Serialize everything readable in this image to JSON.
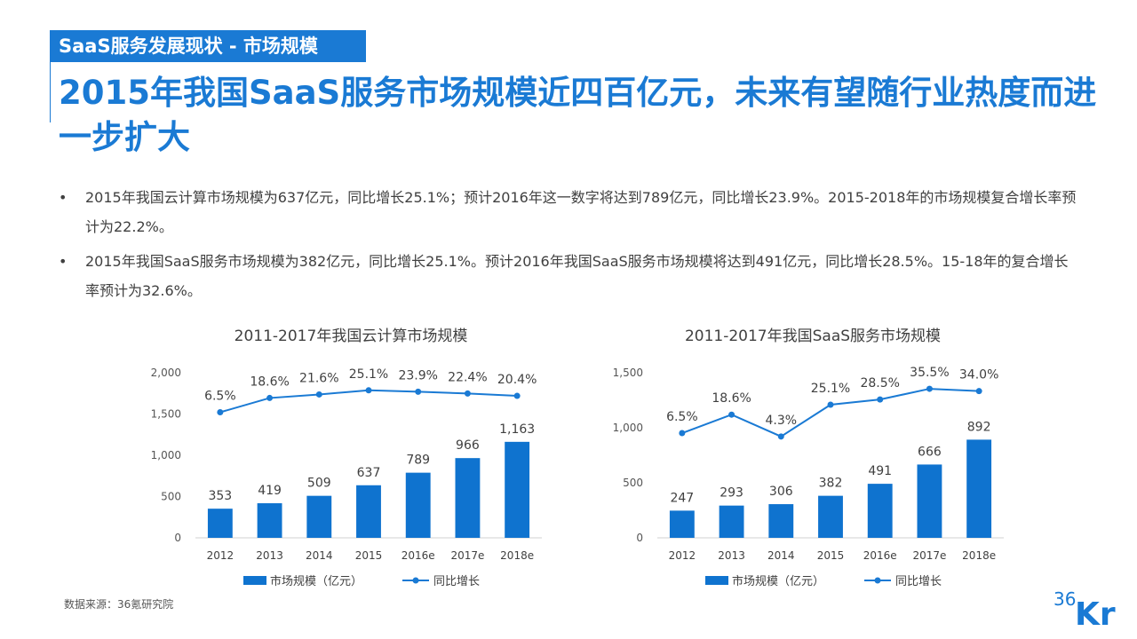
{
  "section_tag": "SaaS服务发展现状 - 市场规模",
  "headline": "2015年我国SaaS服务市场规模近四百亿元，未来有望随行业热度而进一步扩大",
  "bullets": [
    "2015年我国云计算市场规模为637亿元，同比增长25.1%；预计2016年这一数字将达到789亿元，同比增长23.9%。2015-2018年的市场规模复合增长率预计为22.2%。",
    "2015年我国SaaS服务市场规模为382亿元，同比增长25.1%。预计2016年我国SaaS服务市场规模将达到491亿元，同比增长28.5%。15-18年的复合增长率预计为32.6%。"
  ],
  "bullet_symbol": "•",
  "source": "数据来源：36氪研究院",
  "logo": {
    "number": "36",
    "letters": "Kr"
  },
  "colors": {
    "accent": "#1a7ad4",
    "bar": "#0f73cf",
    "line": "#1a7ad4",
    "text": "#404040"
  },
  "chart_data": [
    {
      "type": "bar+line",
      "title": "2011-2017年我国云计算市场规模",
      "categories": [
        "2012",
        "2013",
        "2014",
        "2015",
        "2016e",
        "2017e",
        "2018e"
      ],
      "series": [
        {
          "name": "市场规模（亿元）",
          "type": "bar",
          "values": [
            353,
            419,
            509,
            637,
            789,
            966,
            1163
          ],
          "labels": [
            "353",
            "419",
            "509",
            "637",
            "789",
            "966",
            "1,163"
          ]
        },
        {
          "name": "同比增长",
          "type": "line",
          "values": [
            6.5,
            18.6,
            21.6,
            25.1,
            23.9,
            22.4,
            20.4
          ],
          "labels": [
            "6.5%",
            "18.6%",
            "21.6%",
            "25.1%",
            "23.9%",
            "22.4%",
            "20.4%"
          ]
        }
      ],
      "yaxis": {
        "min": 0,
        "max": 2000,
        "ticks": [
          "0",
          "500",
          "1,000",
          "1,500",
          "2,000"
        ]
      },
      "line_axis_range": [
        -100,
        40
      ],
      "legend": "bottom"
    },
    {
      "type": "bar+line",
      "title": "2011-2017年我国SaaS服务市场规模",
      "categories": [
        "2012",
        "2013",
        "2014",
        "2015",
        "2016e",
        "2017e",
        "2018e"
      ],
      "series": [
        {
          "name": "市场规模（亿元）",
          "type": "bar",
          "values": [
            247,
            293,
            306,
            382,
            491,
            666,
            892
          ],
          "labels": [
            "247",
            "293",
            "306",
            "382",
            "491",
            "666",
            "892"
          ]
        },
        {
          "name": "同比增长",
          "type": "line",
          "values": [
            6.5,
            18.6,
            4.3,
            25.1,
            28.5,
            35.5,
            34.0
          ],
          "labels": [
            "6.5%",
            "18.6%",
            "4.3%",
            "25.1%",
            "28.5%",
            "35.5%",
            "34.0%"
          ]
        }
      ],
      "yaxis": {
        "min": 0,
        "max": 1500,
        "ticks": [
          "0",
          "500",
          "1,000",
          "1,500"
        ]
      },
      "line_axis_range": [
        -62,
        46
      ],
      "legend": "bottom"
    }
  ]
}
